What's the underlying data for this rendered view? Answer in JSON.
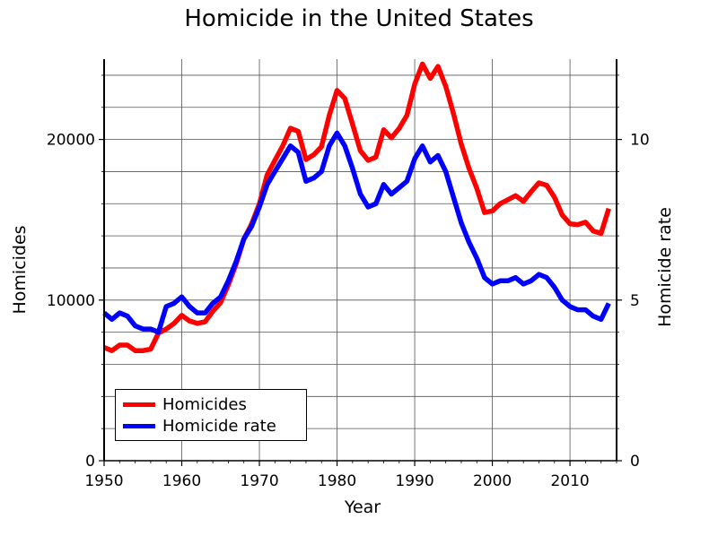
{
  "chart_data": {
    "type": "line",
    "title": "Homicide in the United States",
    "xlabel": "Year",
    "ylabel_left": "Homicides",
    "ylabel_right": "Homicide rate",
    "xlim": [
      1950,
      2016
    ],
    "ylim_left": [
      0,
      25000
    ],
    "ylim_right": [
      0,
      12.5
    ],
    "x_ticks": [
      1950,
      1960,
      1970,
      1980,
      1990,
      2000,
      2010
    ],
    "y_ticks_left": [
      0,
      10000,
      20000
    ],
    "y_ticks_right": [
      0,
      5,
      10
    ],
    "grid": true,
    "legend_position": "bottom-left",
    "x": [
      1950,
      1951,
      1952,
      1953,
      1954,
      1955,
      1956,
      1957,
      1958,
      1959,
      1960,
      1961,
      1962,
      1963,
      1964,
      1965,
      1966,
      1967,
      1968,
      1969,
      1970,
      1971,
      1972,
      1973,
      1974,
      1975,
      1976,
      1977,
      1978,
      1979,
      1980,
      1981,
      1982,
      1983,
      1984,
      1985,
      1986,
      1987,
      1988,
      1989,
      1990,
      1991,
      1992,
      1993,
      1994,
      1995,
      1996,
      1997,
      1998,
      1999,
      2000,
      2001,
      2002,
      2003,
      2004,
      2005,
      2006,
      2007,
      2008,
      2009,
      2010,
      2011,
      2012,
      2013,
      2014,
      2015
    ],
    "series": [
      {
        "name": "Homicides",
        "color": "#ff0000",
        "axis": "left",
        "values": [
          7050,
          6850,
          7200,
          7200,
          6850,
          6850,
          6950,
          7950,
          8200,
          8550,
          9050,
          8700,
          8550,
          8650,
          9300,
          9850,
          10950,
          12250,
          13800,
          14750,
          16000,
          17800,
          18700,
          19600,
          20700,
          20500,
          18750,
          19050,
          19550,
          21500,
          23050,
          22550,
          20950,
          19300,
          18700,
          18900,
          20600,
          20100,
          20700,
          21500,
          23450,
          24700,
          23800,
          24550,
          23300,
          21600,
          19700,
          18200,
          16950,
          15450,
          15550,
          16000,
          16250,
          16500,
          16150,
          16750,
          17300,
          17150,
          16400,
          15300,
          14750,
          14700,
          14850,
          14300,
          14150,
          15700
        ]
      },
      {
        "name": "Homicide rate",
        "color": "#0000ff",
        "axis": "right",
        "values": [
          4.6,
          4.4,
          4.6,
          4.5,
          4.2,
          4.1,
          4.1,
          4.0,
          4.8,
          4.9,
          5.1,
          4.8,
          4.6,
          4.6,
          4.9,
          5.1,
          5.6,
          6.2,
          6.9,
          7.3,
          7.9,
          8.6,
          9.0,
          9.4,
          9.8,
          9.6,
          8.7,
          8.8,
          9.0,
          9.8,
          10.2,
          9.8,
          9.1,
          8.3,
          7.9,
          8.0,
          8.6,
          8.3,
          8.5,
          8.7,
          9.4,
          9.8,
          9.3,
          9.5,
          9.0,
          8.2,
          7.4,
          6.8,
          6.3,
          5.7,
          5.5,
          5.6,
          5.6,
          5.7,
          5.5,
          5.6,
          5.8,
          5.7,
          5.4,
          5.0,
          4.8,
          4.7,
          4.7,
          4.5,
          4.4,
          4.9
        ]
      }
    ]
  }
}
